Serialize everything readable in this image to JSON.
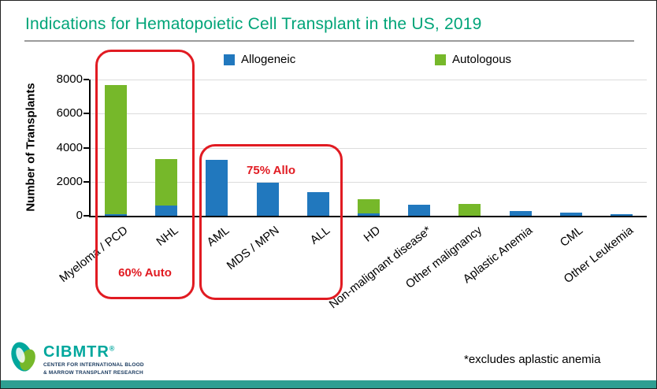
{
  "title": "Indications for Hematopoietic Cell Transplant in the US, 2019",
  "footnote": "*excludes aplastic anemia",
  "legend": {
    "allogeneic": "Allogeneic",
    "autologous": "Autologous"
  },
  "annotations": {
    "auto_pct": "60% Auto",
    "allo_pct": "75% Allo"
  },
  "logo": {
    "name": "CIBMTR",
    "reg": "®",
    "tagline_line1": "CENTER FOR INTERNATIONAL BLOOD",
    "tagline_line2": "& MARROW TRANSPLANT RESEARCH"
  },
  "colors": {
    "allogeneic": "#2178BE",
    "autologous": "#76B82A",
    "accent_teal": "#00A478",
    "annotation_red": "#E11B22",
    "footer_teal": "#2E9F92"
  },
  "chart_data": {
    "type": "bar",
    "stacked": true,
    "title": "Indications for Hematopoietic Cell Transplant in the US, 2019",
    "xlabel": "",
    "ylabel": "Number of Transplants",
    "ylim": [
      0,
      8000
    ],
    "yticks": [
      0,
      2000,
      4000,
      6000,
      8000
    ],
    "grid": true,
    "legend_position": "top",
    "categories": [
      "Myeloma / PCD",
      "NHL",
      "AML",
      "MDS / MPN",
      "ALL",
      "HD",
      "Non-malignant disease*",
      "Other malignancy",
      "Aplastic Anemia",
      "CML",
      "Other Leukemia"
    ],
    "series": [
      {
        "name": "Allogeneic",
        "color": "#2178BE",
        "values": [
          100,
          600,
          3300,
          1950,
          1400,
          150,
          650,
          0,
          300,
          200,
          100
        ]
      },
      {
        "name": "Autologous",
        "color": "#76B82A",
        "values": [
          7600,
          2750,
          0,
          0,
          0,
          850,
          0,
          700,
          0,
          0,
          0
        ]
      }
    ],
    "annotations": [
      {
        "text": "60% Auto",
        "covers": [
          "Myeloma / PCD",
          "NHL"
        ]
      },
      {
        "text": "75% Allo",
        "covers": [
          "AML",
          "MDS / MPN",
          "ALL"
        ]
      }
    ]
  }
}
